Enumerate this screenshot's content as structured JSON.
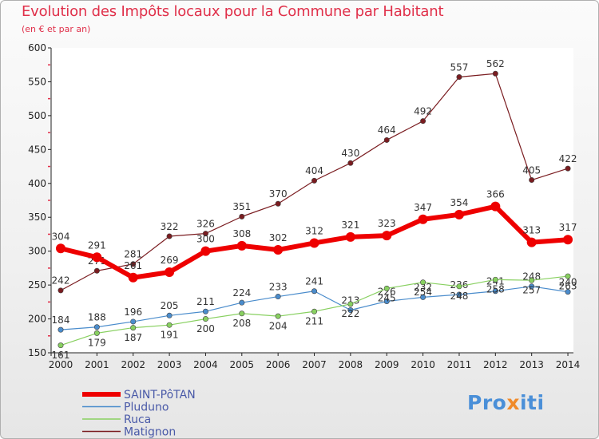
{
  "title": "Evolution des Impôts locaux pour la Commune par Habitant",
  "subtitle": "(en € et par an)",
  "logo": {
    "part1": "Pro",
    "part2": "x",
    "part3": "iti"
  },
  "chart_data": {
    "type": "line",
    "title": "Evolution des Impôts locaux pour la Commune par Habitant",
    "subtitle": "(en € et par an)",
    "xlabel": "",
    "ylabel": "",
    "ylim": [
      150,
      600
    ],
    "yticks": [
      150,
      200,
      250,
      300,
      350,
      400,
      450,
      500,
      550,
      600
    ],
    "x": [
      "2000",
      "2001",
      "2002",
      "2003",
      "2004",
      "2005",
      "2006",
      "2007",
      "2008",
      "2009",
      "2010",
      "2011",
      "2012",
      "2013",
      "2014"
    ],
    "grid": false,
    "legend_position": "bottom-left",
    "series": [
      {
        "name": "Matignon",
        "color": "#7a1c20",
        "values": [
          242,
          271,
          281,
          322,
          326,
          351,
          370,
          404,
          430,
          464,
          492,
          557,
          562,
          405,
          422
        ]
      },
      {
        "name": "Pluduno",
        "color": "#4a8ccc",
        "values": [
          184,
          188,
          196,
          205,
          211,
          224,
          233,
          241,
          213,
          226,
          232,
          236,
          241,
          248,
          240
        ]
      },
      {
        "name": "Ruca",
        "color": "#88d060",
        "values": [
          161,
          179,
          187,
          191,
          200,
          208,
          204,
          211,
          222,
          245,
          254,
          248,
          258,
          257,
          263
        ]
      },
      {
        "name": "SAINT-PôTAN",
        "color": "#ee0000",
        "values": [
          304,
          291,
          261,
          269,
          300,
          308,
          302,
          312,
          321,
          323,
          347,
          354,
          366,
          313,
          317
        ]
      }
    ],
    "legend_order": [
      "SAINT-PôTAN",
      "Pluduno",
      "Ruca",
      "Matignon"
    ]
  }
}
